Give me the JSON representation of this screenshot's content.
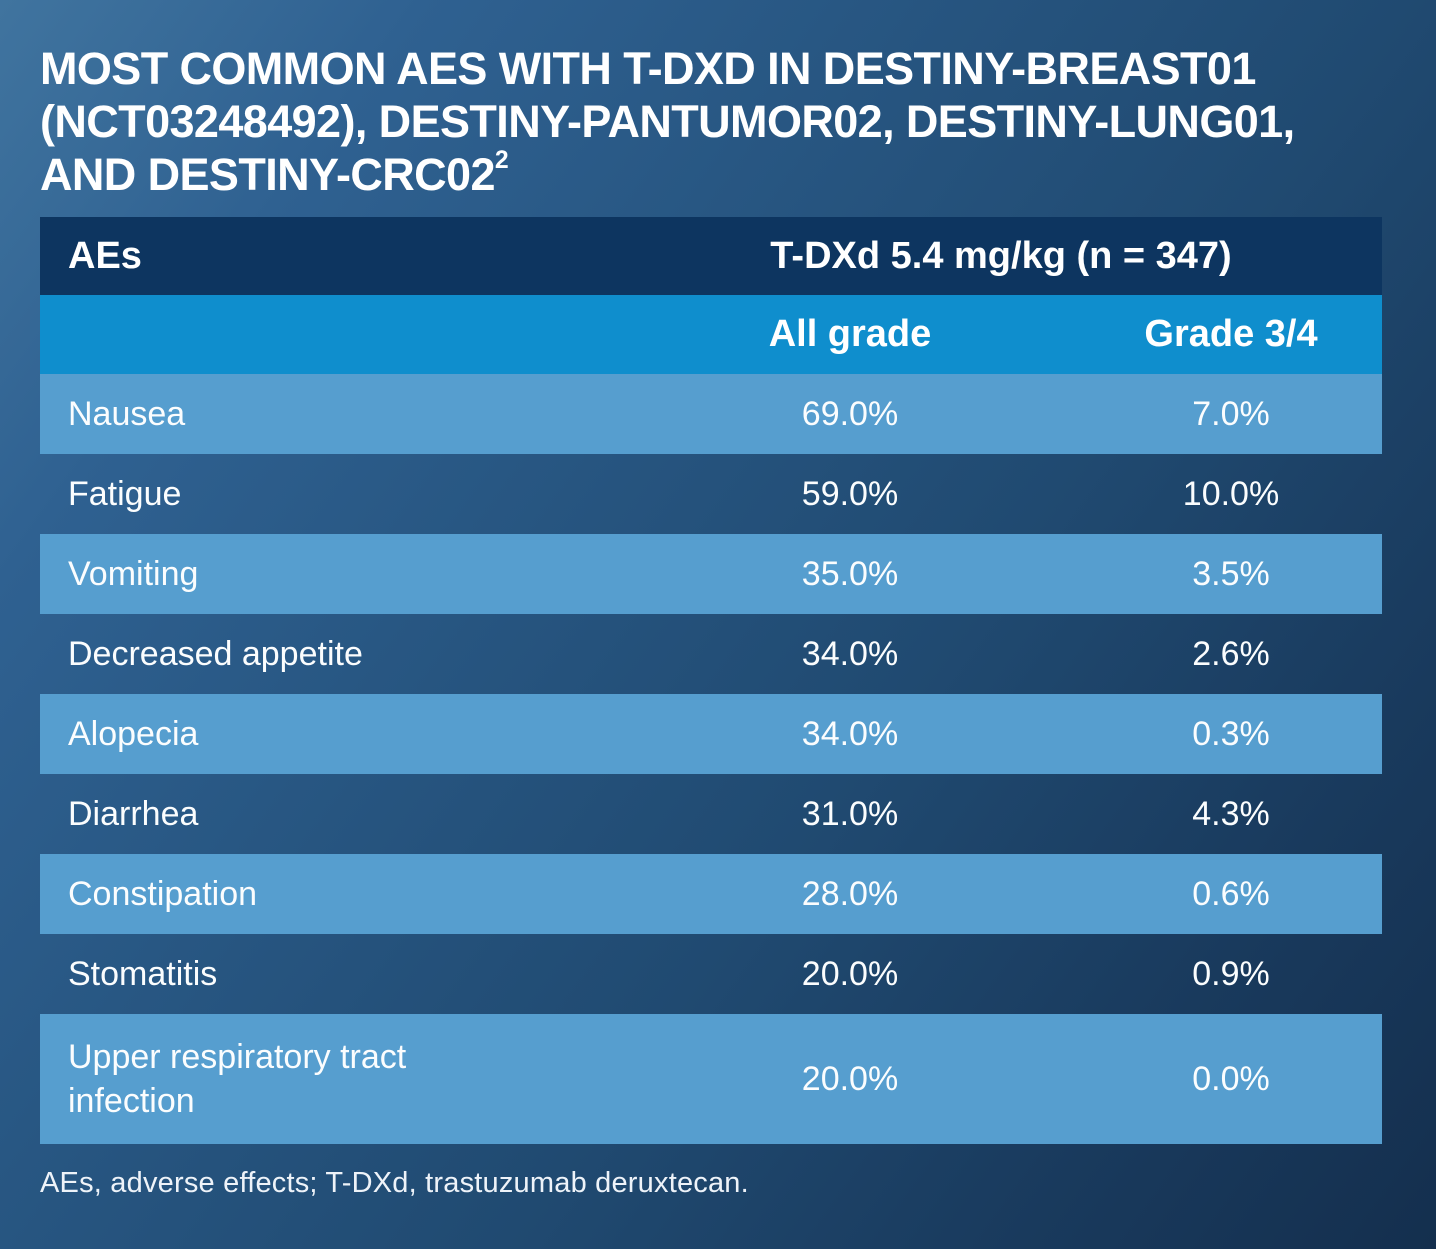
{
  "title": {
    "lines": [
      "MOST COMMON AES WITH T-DXD IN DESTINY-BREAST01",
      "(NCT03248492), DESTINY-PANTUMOR02, DESTINY-LUNG01,",
      "AND DESTINY-CRC02"
    ],
    "reference_mark": "2"
  },
  "table": {
    "header": {
      "col1": "AEs",
      "group": "T-DXd 5.4 mg/kg (n = 347)"
    },
    "subheader": {
      "col2": "All grade",
      "col3": "Grade 3/4"
    },
    "rows": [
      {
        "label": "Nausea",
        "all_grade": "69.0%",
        "grade_3_4": "7.0%"
      },
      {
        "label": "Fatigue",
        "all_grade": "59.0%",
        "grade_3_4": "10.0%"
      },
      {
        "label": "Vomiting",
        "all_grade": "35.0%",
        "grade_3_4": "3.5%"
      },
      {
        "label": "Decreased appetite",
        "all_grade": "34.0%",
        "grade_3_4": "2.6%"
      },
      {
        "label": "Alopecia",
        "all_grade": "34.0%",
        "grade_3_4": "0.3%"
      },
      {
        "label": "Diarrhea",
        "all_grade": "31.0%",
        "grade_3_4": "4.3%"
      },
      {
        "label": "Constipation",
        "all_grade": "28.0%",
        "grade_3_4": "0.6%"
      },
      {
        "label": "Stomatitis",
        "all_grade": "20.0%",
        "grade_3_4": "0.9%"
      },
      {
        "label": "Upper respiratory tract infection",
        "all_grade": "20.0%",
        "grade_3_4": "0.0%"
      }
    ]
  },
  "footnote": "AEs, adverse effects; T-DXd, trastuzumab deruxtecan.",
  "colors": {
    "background_gradient_start": "#40749f",
    "background_gradient_end": "#142f4e",
    "header_row_bg": "#0d3560",
    "subheader_row_bg": "#0f8ecd",
    "light_row_bg": "#569ecf",
    "text": "#ffffff"
  }
}
